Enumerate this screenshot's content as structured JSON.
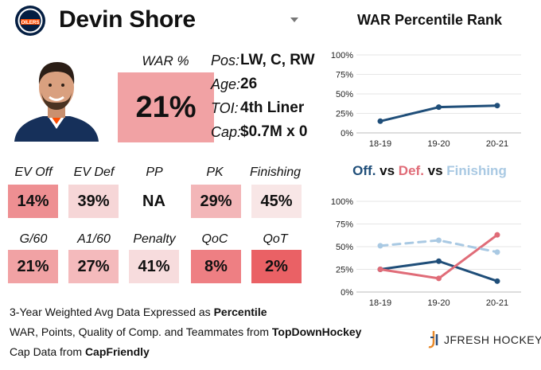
{
  "team": {
    "logo_text": "OILERS",
    "colors": {
      "primary": "#041e42",
      "secondary": "#fc4c02",
      "accent": "#ffffff"
    }
  },
  "player": {
    "name": "Devin Shore",
    "info": [
      {
        "key": "Pos:",
        "value": "LW, C, RW"
      },
      {
        "key": "Age:",
        "value": "26"
      },
      {
        "key": "TOI:",
        "value": "4th Liner"
      },
      {
        "key": "Cap:",
        "value": "$0.7M x 0"
      }
    ],
    "war": {
      "label": "WAR %",
      "value": "21%"
    }
  },
  "stats_row1": [
    {
      "label": "EV Off",
      "value": "14%",
      "color": "#ee8f92"
    },
    {
      "label": "EV Def",
      "value": "39%",
      "color": "#f6d6d7"
    },
    {
      "label": "PP",
      "value": "NA",
      "color": "#ffffff"
    },
    {
      "label": "PK",
      "value": "29%",
      "color": "#f3b6b8"
    },
    {
      "label": "Finishing",
      "value": "45%",
      "color": "#f8e6e6"
    }
  ],
  "stats_row2": [
    {
      "label": "G/60",
      "value": "21%",
      "color": "#f1a2a4"
    },
    {
      "label": "A1/60",
      "value": "27%",
      "color": "#f4babc"
    },
    {
      "label": "Penalty",
      "value": "41%",
      "color": "#f7dcdd"
    },
    {
      "label": "QoC",
      "value": "8%",
      "color": "#ee7f83"
    },
    {
      "label": "QoT",
      "value": "2%",
      "color": "#ea6165"
    }
  ],
  "footer": {
    "line1_prefix": "3-Year Weighted Avg Data Expressed as ",
    "line1_bold": "Percentile",
    "line2_prefix": "WAR, Points, Quality of Comp. and Teammates from ",
    "line2_bold": "TopDownHockey",
    "line3_prefix": "Cap Data from ",
    "line3_bold": "CapFriendly",
    "brand": "JFRESH HOCKEY"
  },
  "chart2_title": {
    "p1": "Off.",
    "p2": " vs ",
    "p3": "Def.",
    "p4": " vs ",
    "p5": "Finishing"
  },
  "chart_data": [
    {
      "type": "line",
      "title": "WAR Percentile Rank",
      "categories": [
        "18-19",
        "19-20",
        "20-21"
      ],
      "yticks": [
        "0%",
        "25%",
        "50%",
        "75%",
        "100%"
      ],
      "ylim": [
        0,
        100
      ],
      "grid": true,
      "series": [
        {
          "values": [
            15,
            33,
            35
          ],
          "color": "#1f4e79",
          "dashed": false
        }
      ]
    },
    {
      "type": "line",
      "categories": [
        "18-19",
        "19-20",
        "20-21"
      ],
      "yticks": [
        "0%",
        "25%",
        "50%",
        "75%",
        "100%"
      ],
      "ylim": [
        0,
        100
      ],
      "grid": true,
      "series": [
        {
          "name": "Off.",
          "values": [
            25,
            34,
            12
          ],
          "color": "#1f4e79",
          "dashed": false
        },
        {
          "name": "Def.",
          "values": [
            25,
            15,
            63
          ],
          "color": "#e06c78",
          "dashed": false
        },
        {
          "name": "Finishing",
          "values": [
            51,
            57,
            44
          ],
          "color": "#a9c9e3",
          "dashed": true
        }
      ]
    }
  ]
}
